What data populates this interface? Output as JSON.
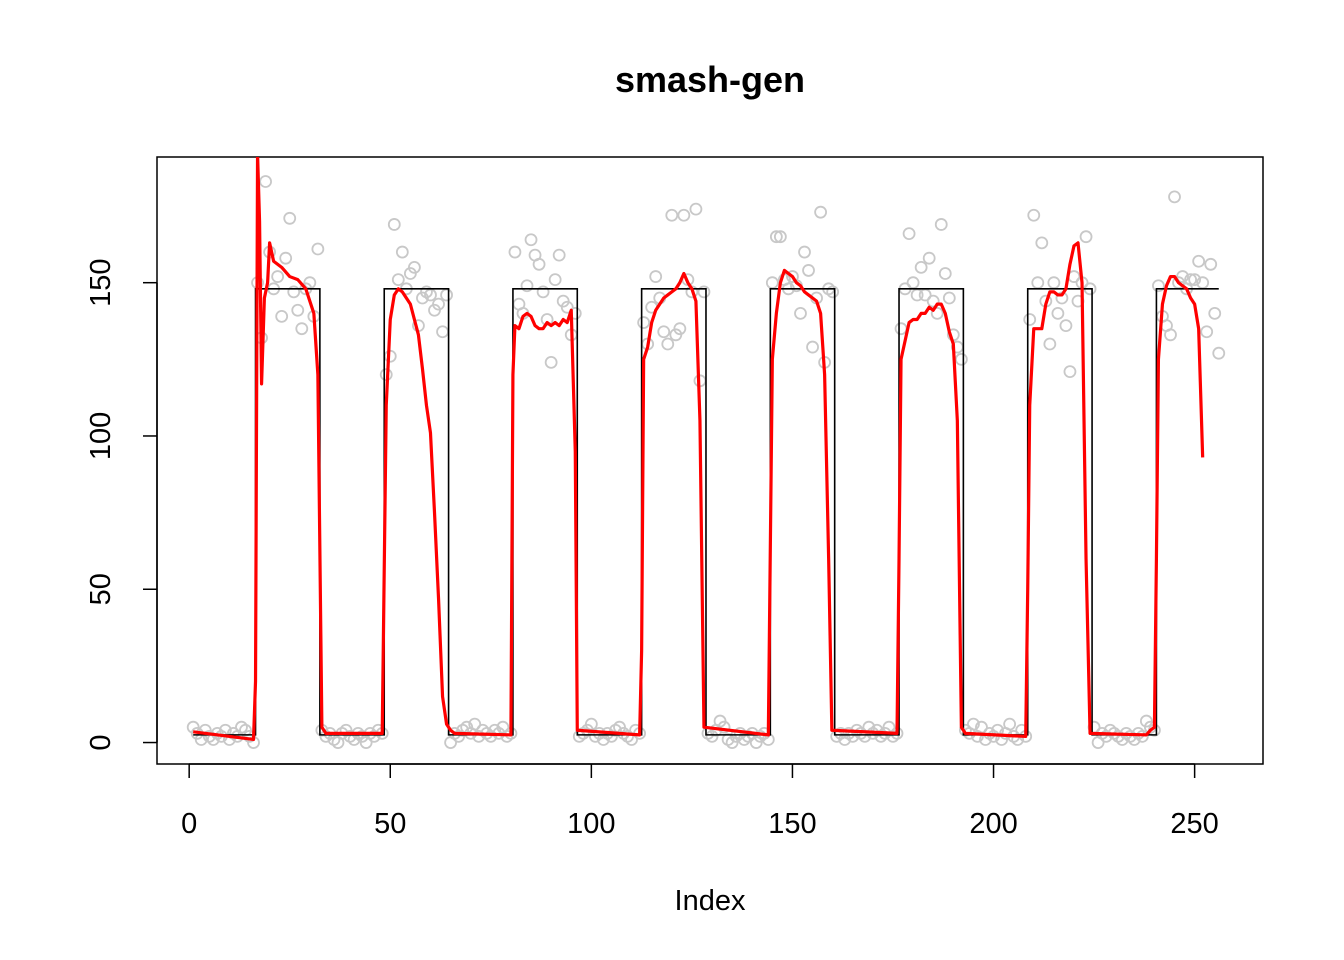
{
  "chart_data": {
    "type": "scatter",
    "title": "smash-gen",
    "xlabel": "Index",
    "ylabel": "",
    "xlim": [
      -8,
      267
    ],
    "ylim": [
      -7,
      191
    ],
    "x_ticks": [
      0,
      50,
      100,
      150,
      200,
      250
    ],
    "y_ticks": [
      0,
      50,
      100,
      150
    ],
    "grid": false,
    "colors": {
      "points": "#c8c8c8",
      "true_signal": "#000000",
      "estimate": "#ff0000"
    },
    "truth": {
      "low": 2.5,
      "high": 148,
      "high_intervals": [
        [
          16.5,
          32.5
        ],
        [
          48.5,
          64.5
        ],
        [
          80.5,
          96.5
        ],
        [
          112.5,
          128.5
        ],
        [
          144.5,
          160.5
        ],
        [
          176.5,
          192.5
        ],
        [
          208.5,
          224.5
        ],
        [
          240.5,
          256
        ]
      ]
    },
    "points": [
      [
        1,
        5
      ],
      [
        2,
        3
      ],
      [
        3,
        1
      ],
      [
        4,
        4
      ],
      [
        5,
        2
      ],
      [
        6,
        1
      ],
      [
        7,
        3
      ],
      [
        8,
        2
      ],
      [
        9,
        4
      ],
      [
        10,
        1
      ],
      [
        11,
        3
      ],
      [
        12,
        2
      ],
      [
        13,
        5
      ],
      [
        14,
        4
      ],
      [
        15,
        2
      ],
      [
        16,
        0
      ],
      [
        17,
        150
      ],
      [
        18,
        132
      ],
      [
        19,
        183
      ],
      [
        20,
        160
      ],
      [
        21,
        148
      ],
      [
        22,
        152
      ],
      [
        23,
        139
      ],
      [
        24,
        158
      ],
      [
        25,
        171
      ],
      [
        26,
        147
      ],
      [
        27,
        141
      ],
      [
        28,
        135
      ],
      [
        29,
        148
      ],
      [
        30,
        150
      ],
      [
        31,
        139
      ],
      [
        32,
        161
      ],
      [
        33,
        4
      ],
      [
        34,
        2
      ],
      [
        35,
        3
      ],
      [
        36,
        1
      ],
      [
        37,
        0
      ],
      [
        38,
        3
      ],
      [
        39,
        4
      ],
      [
        40,
        2
      ],
      [
        41,
        1
      ],
      [
        42,
        3
      ],
      [
        43,
        2
      ],
      [
        44,
        0
      ],
      [
        45,
        3
      ],
      [
        46,
        2
      ],
      [
        47,
        4
      ],
      [
        48,
        3
      ],
      [
        49,
        120
      ],
      [
        50,
        126
      ],
      [
        51,
        169
      ],
      [
        52,
        151
      ],
      [
        53,
        160
      ],
      [
        54,
        148
      ],
      [
        55,
        153
      ],
      [
        56,
        155
      ],
      [
        57,
        136
      ],
      [
        58,
        145
      ],
      [
        59,
        147
      ],
      [
        60,
        146
      ],
      [
        61,
        141
      ],
      [
        62,
        143
      ],
      [
        63,
        134
      ],
      [
        64,
        146
      ],
      [
        65,
        0
      ],
      [
        66,
        3
      ],
      [
        67,
        2
      ],
      [
        68,
        4
      ],
      [
        69,
        5
      ],
      [
        70,
        3
      ],
      [
        71,
        6
      ],
      [
        72,
        2
      ],
      [
        73,
        4
      ],
      [
        74,
        3
      ],
      [
        75,
        2
      ],
      [
        76,
        4
      ],
      [
        77,
        3
      ],
      [
        78,
        5
      ],
      [
        79,
        2
      ],
      [
        80,
        3
      ],
      [
        81,
        160
      ],
      [
        82,
        143
      ],
      [
        83,
        140
      ],
      [
        84,
        149
      ],
      [
        85,
        164
      ],
      [
        86,
        159
      ],
      [
        87,
        156
      ],
      [
        88,
        147
      ],
      [
        89,
        138
      ],
      [
        90,
        124
      ],
      [
        91,
        151
      ],
      [
        92,
        159
      ],
      [
        93,
        144
      ],
      [
        94,
        142
      ],
      [
        95,
        133
      ],
      [
        96,
        140
      ],
      [
        97,
        2
      ],
      [
        98,
        3
      ],
      [
        99,
        4
      ],
      [
        100,
        6
      ],
      [
        101,
        2
      ],
      [
        102,
        3
      ],
      [
        103,
        1
      ],
      [
        104,
        3
      ],
      [
        105,
        2
      ],
      [
        106,
        4
      ],
      [
        107,
        5
      ],
      [
        108,
        3
      ],
      [
        109,
        2
      ],
      [
        110,
        1
      ],
      [
        111,
        4
      ],
      [
        112,
        3
      ],
      [
        113,
        137
      ],
      [
        114,
        130
      ],
      [
        115,
        142
      ],
      [
        116,
        152
      ],
      [
        117,
        145
      ],
      [
        118,
        134
      ],
      [
        119,
        130
      ],
      [
        120,
        172
      ],
      [
        121,
        133
      ],
      [
        122,
        135
      ],
      [
        123,
        172
      ],
      [
        124,
        151
      ],
      [
        125,
        147
      ],
      [
        126,
        174
      ],
      [
        127,
        118
      ],
      [
        128,
        147
      ],
      [
        129,
        3
      ],
      [
        130,
        2
      ],
      [
        131,
        4
      ],
      [
        132,
        7
      ],
      [
        133,
        5
      ],
      [
        134,
        1
      ],
      [
        135,
        0
      ],
      [
        136,
        2
      ],
      [
        137,
        3
      ],
      [
        138,
        1
      ],
      [
        139,
        2
      ],
      [
        140,
        3
      ],
      [
        141,
        0
      ],
      [
        142,
        2
      ],
      [
        143,
        3
      ],
      [
        144,
        1
      ],
      [
        145,
        150
      ],
      [
        146,
        165
      ],
      [
        147,
        165
      ],
      [
        148,
        151
      ],
      [
        149,
        148
      ],
      [
        150,
        152
      ],
      [
        151,
        149
      ],
      [
        152,
        140
      ],
      [
        153,
        160
      ],
      [
        154,
        154
      ],
      [
        155,
        129
      ],
      [
        156,
        145
      ],
      [
        157,
        173
      ],
      [
        158,
        124
      ],
      [
        159,
        148
      ],
      [
        160,
        147
      ],
      [
        161,
        2
      ],
      [
        162,
        3
      ],
      [
        163,
        1
      ],
      [
        164,
        3
      ],
      [
        165,
        2
      ],
      [
        166,
        4
      ],
      [
        167,
        3
      ],
      [
        168,
        2
      ],
      [
        169,
        5
      ],
      [
        170,
        3
      ],
      [
        171,
        4
      ],
      [
        172,
        2
      ],
      [
        173,
        3
      ],
      [
        174,
        5
      ],
      [
        175,
        2
      ],
      [
        176,
        3
      ],
      [
        177,
        135
      ],
      [
        178,
        148
      ],
      [
        179,
        166
      ],
      [
        180,
        150
      ],
      [
        181,
        146
      ],
      [
        182,
        155
      ],
      [
        183,
        146
      ],
      [
        184,
        158
      ],
      [
        185,
        144
      ],
      [
        186,
        140
      ],
      [
        187,
        169
      ],
      [
        188,
        153
      ],
      [
        189,
        145
      ],
      [
        190,
        133
      ],
      [
        191,
        129
      ],
      [
        192,
        125
      ],
      [
        193,
        4
      ],
      [
        194,
        3
      ],
      [
        195,
        6
      ],
      [
        196,
        2
      ],
      [
        197,
        5
      ],
      [
        198,
        1
      ],
      [
        199,
        3
      ],
      [
        200,
        2
      ],
      [
        201,
        4
      ],
      [
        202,
        1
      ],
      [
        203,
        3
      ],
      [
        204,
        6
      ],
      [
        205,
        2
      ],
      [
        206,
        1
      ],
      [
        207,
        4
      ],
      [
        208,
        2
      ],
      [
        209,
        138
      ],
      [
        210,
        172
      ],
      [
        211,
        150
      ],
      [
        212,
        163
      ],
      [
        213,
        144
      ],
      [
        214,
        130
      ],
      [
        215,
        150
      ],
      [
        216,
        140
      ],
      [
        217,
        145
      ],
      [
        218,
        136
      ],
      [
        219,
        121
      ],
      [
        220,
        152
      ],
      [
        221,
        144
      ],
      [
        222,
        150
      ],
      [
        223,
        165
      ],
      [
        224,
        148
      ],
      [
        225,
        5
      ],
      [
        226,
        0
      ],
      [
        227,
        3
      ],
      [
        228,
        2
      ],
      [
        229,
        4
      ],
      [
        230,
        3
      ],
      [
        231,
        2
      ],
      [
        232,
        1
      ],
      [
        233,
        3
      ],
      [
        234,
        2
      ],
      [
        235,
        1
      ],
      [
        236,
        3
      ],
      [
        237,
        2
      ],
      [
        238,
        7
      ],
      [
        239,
        5
      ],
      [
        240,
        4
      ],
      [
        241,
        149
      ],
      [
        242,
        139
      ],
      [
        243,
        136
      ],
      [
        244,
        133
      ],
      [
        245,
        178
      ],
      [
        246,
        150
      ],
      [
        247,
        152
      ],
      [
        248,
        148
      ],
      [
        249,
        151
      ],
      [
        250,
        151
      ],
      [
        251,
        157
      ],
      [
        252,
        150
      ],
      [
        253,
        134
      ],
      [
        254,
        156
      ],
      [
        255,
        140
      ],
      [
        256,
        127
      ]
    ],
    "estimate": [
      [
        1,
        3.5
      ],
      [
        16,
        1
      ],
      [
        16.5,
        20
      ],
      [
        17,
        192
      ],
      [
        17.5,
        170
      ],
      [
        18,
        117
      ],
      [
        18.7,
        145
      ],
      [
        19.5,
        150
      ],
      [
        20,
        163
      ],
      [
        21,
        157
      ],
      [
        23,
        155
      ],
      [
        25,
        152
      ],
      [
        27,
        151
      ],
      [
        29,
        148
      ],
      [
        31,
        140
      ],
      [
        32,
        120
      ],
      [
        33,
        5
      ],
      [
        34,
        3
      ],
      [
        48,
        3
      ],
      [
        49,
        110
      ],
      [
        50,
        138
      ],
      [
        51,
        146
      ],
      [
        52,
        148
      ],
      [
        53,
        147
      ],
      [
        54,
        145
      ],
      [
        55,
        143
      ],
      [
        56,
        138
      ],
      [
        57,
        133
      ],
      [
        58,
        122
      ],
      [
        59,
        110
      ],
      [
        60,
        101
      ],
      [
        61,
        75
      ],
      [
        62,
        47
      ],
      [
        63,
        15
      ],
      [
        64,
        6
      ],
      [
        65,
        4
      ],
      [
        66,
        3
      ],
      [
        80,
        2.5
      ],
      [
        80.5,
        120
      ],
      [
        81,
        136
      ],
      [
        82,
        135
      ],
      [
        83,
        139
      ],
      [
        84,
        140
      ],
      [
        85,
        139
      ],
      [
        86,
        136
      ],
      [
        87,
        135
      ],
      [
        88,
        135
      ],
      [
        89,
        137
      ],
      [
        90,
        136
      ],
      [
        91,
        137
      ],
      [
        92,
        136
      ],
      [
        93,
        138
      ],
      [
        94,
        137
      ],
      [
        95,
        141
      ],
      [
        96,
        95
      ],
      [
        96.5,
        4
      ],
      [
        112,
        2.5
      ],
      [
        112.5,
        30
      ],
      [
        113,
        125
      ],
      [
        114,
        129
      ],
      [
        115,
        137
      ],
      [
        116,
        141
      ],
      [
        117,
        143
      ],
      [
        118,
        145
      ],
      [
        119,
        146
      ],
      [
        120,
        147
      ],
      [
        121,
        148
      ],
      [
        122,
        150
      ],
      [
        123,
        153
      ],
      [
        124,
        150
      ],
      [
        125,
        148
      ],
      [
        126,
        144
      ],
      [
        127,
        105
      ],
      [
        128,
        5
      ],
      [
        144,
        2.5
      ],
      [
        145,
        125
      ],
      [
        146,
        140
      ],
      [
        147,
        150
      ],
      [
        148,
        154
      ],
      [
        149,
        153
      ],
      [
        150,
        152
      ],
      [
        151,
        150
      ],
      [
        152,
        149
      ],
      [
        153,
        147
      ],
      [
        154,
        146
      ],
      [
        155,
        145
      ],
      [
        156,
        144
      ],
      [
        157,
        140
      ],
      [
        158,
        120
      ],
      [
        159,
        60
      ],
      [
        159.8,
        4
      ],
      [
        176,
        3
      ],
      [
        176.5,
        60
      ],
      [
        177,
        125
      ],
      [
        178,
        131
      ],
      [
        179,
        137
      ],
      [
        180,
        138
      ],
      [
        181,
        138
      ],
      [
        182,
        140
      ],
      [
        183,
        140
      ],
      [
        184,
        142
      ],
      [
        185,
        141
      ],
      [
        186,
        143
      ],
      [
        187,
        143
      ],
      [
        188,
        140
      ],
      [
        189,
        134
      ],
      [
        190,
        130
      ],
      [
        191,
        105
      ],
      [
        192,
        5
      ],
      [
        193,
        3
      ],
      [
        208,
        2
      ],
      [
        208.5,
        50
      ],
      [
        209,
        110
      ],
      [
        210,
        135
      ],
      [
        211,
        135
      ],
      [
        212,
        135
      ],
      [
        213,
        143
      ],
      [
        214,
        147
      ],
      [
        215,
        147
      ],
      [
        216,
        146
      ],
      [
        217,
        146
      ],
      [
        218,
        148
      ],
      [
        219,
        156
      ],
      [
        220,
        162
      ],
      [
        221,
        163
      ],
      [
        222,
        150
      ],
      [
        223,
        60
      ],
      [
        224,
        3
      ],
      [
        238,
        2.5
      ],
      [
        239,
        4
      ],
      [
        240,
        5
      ],
      [
        240.5,
        60
      ],
      [
        241,
        125
      ],
      [
        242,
        143
      ],
      [
        243,
        149
      ],
      [
        244,
        152
      ],
      [
        245,
        152
      ],
      [
        246,
        150
      ],
      [
        247,
        149
      ],
      [
        248,
        148
      ],
      [
        249,
        145
      ],
      [
        250,
        143
      ],
      [
        251,
        135
      ],
      [
        252,
        93
      ]
    ]
  }
}
